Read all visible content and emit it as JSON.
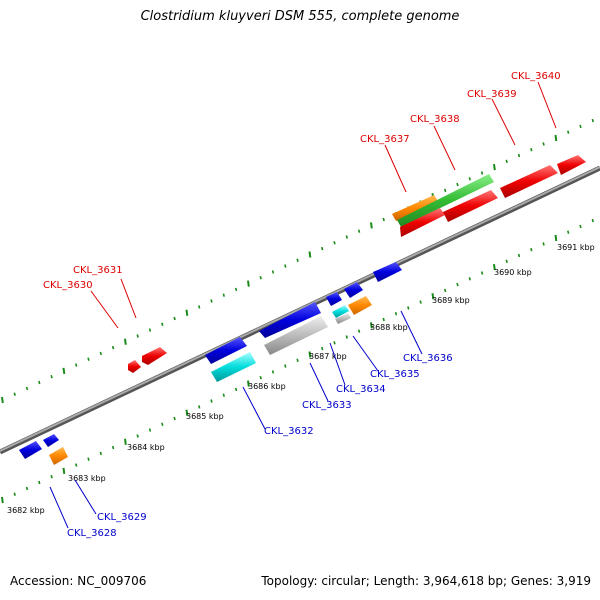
{
  "title": "Clostridium kluyveri DSM 555, complete genome",
  "footer": {
    "accession": "Accession: NC_009706",
    "topology": "Topology: circular; Length: 3,964,618 bp; Genes: 3,919"
  },
  "colors": {
    "backbone": "#888888",
    "ticks": "#1a8a1a",
    "forward_label": "#dd0000",
    "reverse_label": "#0000cc",
    "red": "#ee0000",
    "green": "#33bb33",
    "blue": "#0000dd",
    "cyan": "#00dddd",
    "orange": "#ff8800",
    "gray": "#bbbbbb"
  },
  "scale_labels": [
    "3682 kbp",
    "3683 kbp",
    "3684 kbp",
    "3685 kbp",
    "3686 kbp",
    "3687 kbp",
    "3688 kbp",
    "3689 kbp",
    "3690 kbp",
    "3691 kbp"
  ],
  "forward_gene_labels": [
    "CKL_3630",
    "CKL_3631",
    "CKL_3637",
    "CKL_3638",
    "CKL_3639",
    "CKL_3640"
  ],
  "reverse_gene_labels": [
    "CKL_3628",
    "CKL_3629",
    "CKL_3632",
    "CKL_3633",
    "CKL_3634",
    "CKL_3635",
    "CKL_3636"
  ]
}
